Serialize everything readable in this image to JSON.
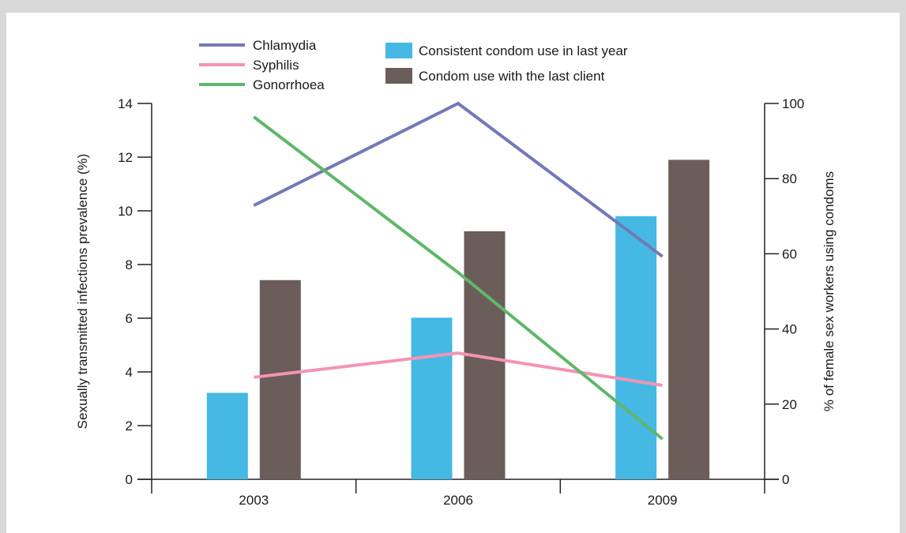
{
  "chart_data": {
    "type": "bar",
    "categories": [
      "2003",
      "2006",
      "2009"
    ],
    "y_left": {
      "label": "Sexually transmitted infections prevalence (%)",
      "range": [
        0,
        14
      ],
      "ticks": [
        0,
        2,
        4,
        6,
        8,
        10,
        12,
        14
      ]
    },
    "y_right": {
      "label": "% of female sex workers using condoms",
      "range": [
        0,
        100
      ],
      "ticks": [
        0,
        20,
        40,
        60,
        80,
        100
      ]
    },
    "bar_series": [
      {
        "name": "Consistent condom use in last year",
        "axis": "right",
        "color": "#45b8e4",
        "values": [
          23,
          43,
          70
        ]
      },
      {
        "name": "Condom use with the last client",
        "axis": "right",
        "color": "#6b5d59",
        "values": [
          53,
          66,
          85
        ]
      }
    ],
    "line_series": [
      {
        "name": "Chlamydia",
        "axis": "left",
        "color": "#7478b8",
        "values": [
          10.2,
          14.0,
          8.3
        ]
      },
      {
        "name": "Syphilis",
        "axis": "left",
        "color": "#f394b4",
        "values": [
          3.8,
          4.7,
          3.5
        ]
      },
      {
        "name": "Gonorrhoea",
        "axis": "left",
        "color": "#5fb76a",
        "values": [
          13.5,
          7.7,
          1.5
        ]
      }
    ],
    "grid": false,
    "legend_position": "top-left"
  }
}
